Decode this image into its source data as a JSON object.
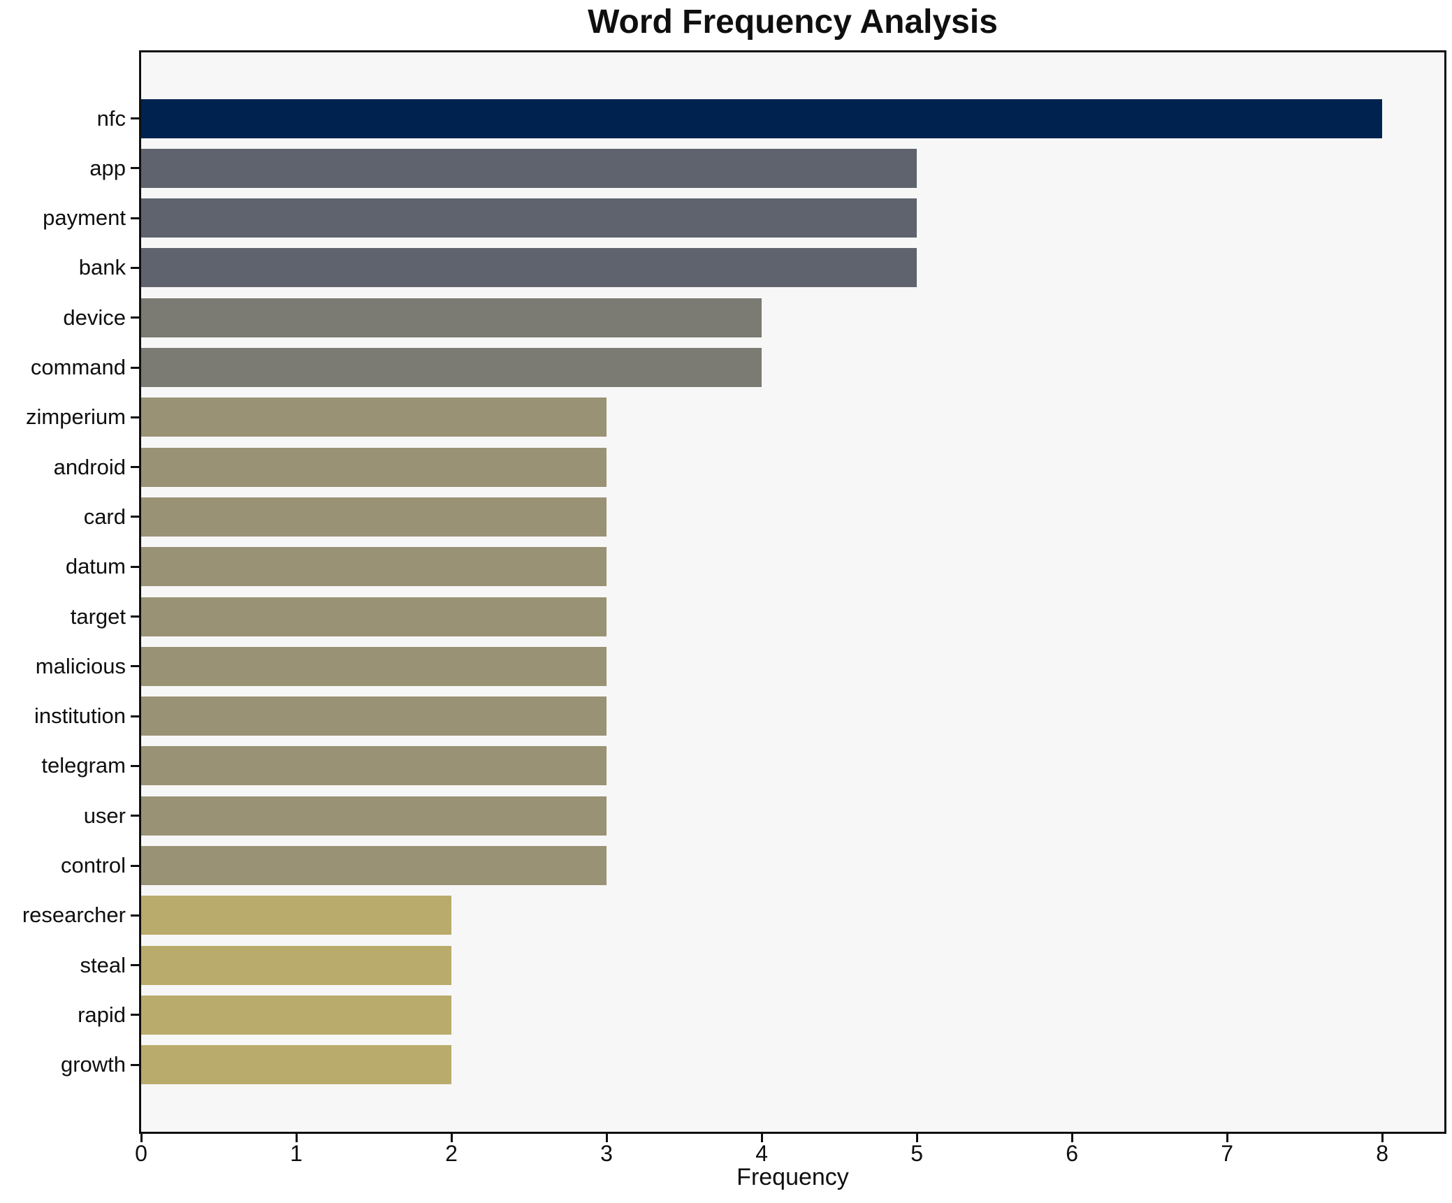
{
  "title": "Word Frequency Analysis",
  "chart_data": {
    "type": "bar",
    "orientation": "horizontal",
    "title": "Word Frequency Analysis",
    "xlabel": "Frequency",
    "ylabel": "",
    "categories": [
      "nfc",
      "app",
      "payment",
      "bank",
      "device",
      "command",
      "zimperium",
      "android",
      "card",
      "datum",
      "target",
      "malicious",
      "institution",
      "telegram",
      "user",
      "control",
      "researcher",
      "steal",
      "rapid",
      "growth"
    ],
    "values": [
      8,
      5,
      5,
      5,
      4,
      4,
      3,
      3,
      3,
      3,
      3,
      3,
      3,
      3,
      3,
      3,
      2,
      2,
      2,
      2
    ],
    "bar_colors": [
      "#00224e",
      "#5e636e",
      "#5e636e",
      "#5e636e",
      "#7b7a73",
      "#7b7a73",
      "#9a9275",
      "#9a9275",
      "#9a9275",
      "#9a9275",
      "#9a9275",
      "#9a9275",
      "#9a9275",
      "#9a9275",
      "#9a9275",
      "#9a9275",
      "#b9ab6b",
      "#b9ab6b",
      "#b9ab6b",
      "#b9ab6b"
    ],
    "xticks": [
      0,
      1,
      2,
      3,
      4,
      5,
      6,
      7,
      8
    ],
    "xlim": [
      0,
      8.4
    ],
    "grid": false,
    "legend": null,
    "plot_background": "#f7f7f7",
    "figure_background": "#ffffff",
    "spine_color": "#0f0f0f"
  }
}
